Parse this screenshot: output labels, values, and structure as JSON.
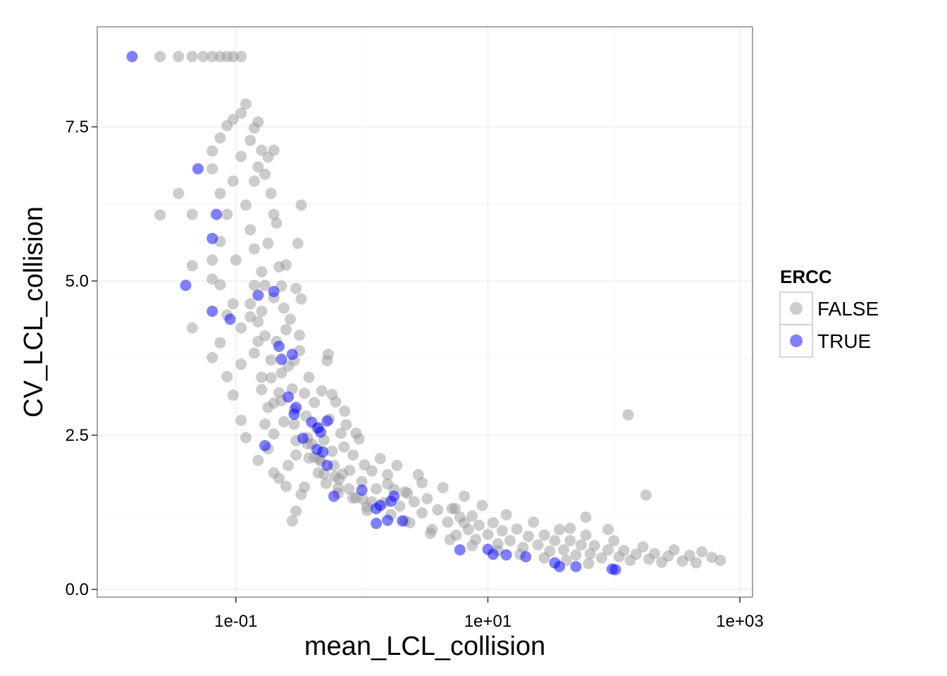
{
  "chart_data": {
    "type": "scatter",
    "title": "",
    "xlabel": "mean_LCL_collision",
    "ylabel": "CV_LCL_collision",
    "x_scale": "log10",
    "xlim": [
      0.01,
      1000
    ],
    "ylim": [
      0.0,
      8.7
    ],
    "x_ticks": [
      0.1,
      10,
      1000
    ],
    "x_tick_labels": [
      "1e-01",
      "1e+01",
      "1e+03"
    ],
    "y_ticks": [
      0.0,
      2.5,
      5.0,
      7.5
    ],
    "y_tick_labels": [
      "0.0",
      "2.5",
      "5.0",
      "7.5"
    ],
    "grid": true,
    "legend": {
      "title": "ERCC",
      "position": "right",
      "entries": [
        {
          "label": "FALSE",
          "color": "#999999"
        },
        {
          "label": "TRUE",
          "color": "#0000ff"
        }
      ]
    },
    "series": [
      {
        "name": "FALSE",
        "color": "#999999",
        "opacity": 0.5,
        "points": [
          [
            0.025,
            8.64
          ],
          [
            0.035,
            8.64
          ],
          [
            0.045,
            8.64
          ],
          [
            0.055,
            8.64
          ],
          [
            0.065,
            8.64
          ],
          [
            0.075,
            8.64
          ],
          [
            0.085,
            8.64
          ],
          [
            0.095,
            8.64
          ],
          [
            0.11,
            8.64
          ],
          [
            0.025,
            6.07
          ],
          [
            0.035,
            6.42
          ],
          [
            0.045,
            6.08
          ],
          [
            0.045,
            4.24
          ],
          [
            0.045,
            5.25
          ],
          [
            0.065,
            7.11
          ],
          [
            0.065,
            6.82
          ],
          [
            0.065,
            3.76
          ],
          [
            0.065,
            5.34
          ],
          [
            0.065,
            5.03
          ],
          [
            0.075,
            7.32
          ],
          [
            0.075,
            6.42
          ],
          [
            0.075,
            4.0
          ],
          [
            0.075,
            4.94
          ],
          [
            0.075,
            5.64
          ],
          [
            0.085,
            7.52
          ],
          [
            0.085,
            6.08
          ],
          [
            0.085,
            3.45
          ],
          [
            0.085,
            4.45
          ],
          [
            0.095,
            7.62
          ],
          [
            0.095,
            6.62
          ],
          [
            0.095,
            3.15
          ],
          [
            0.095,
            4.63
          ],
          [
            0.1,
            5.34
          ],
          [
            0.11,
            7.72
          ],
          [
            0.11,
            7.02
          ],
          [
            0.11,
            2.74
          ],
          [
            0.11,
            3.65
          ],
          [
            0.11,
            4.24
          ],
          [
            0.12,
            7.87
          ],
          [
            0.12,
            6.23
          ],
          [
            0.12,
            2.46
          ],
          [
            0.13,
            7.28
          ],
          [
            0.13,
            5.83
          ],
          [
            0.13,
            4.63
          ],
          [
            0.14,
            7.48
          ],
          [
            0.14,
            6.62
          ],
          [
            0.14,
            5.52
          ],
          [
            0.15,
            7.58
          ],
          [
            0.15,
            6.85
          ],
          [
            0.15,
            4.34
          ],
          [
            0.16,
            7.12
          ],
          [
            0.16,
            5.15
          ],
          [
            0.16,
            3.24
          ],
          [
            0.17,
            6.73
          ],
          [
            0.17,
            4.93
          ],
          [
            0.17,
            2.68
          ],
          [
            0.18,
            7.01
          ],
          [
            0.18,
            5.61
          ],
          [
            0.19,
            6.42
          ],
          [
            0.2,
            6.08
          ],
          [
            0.2,
            4.73
          ],
          [
            0.2,
            1.89
          ],
          [
            0.21,
            5.94
          ],
          [
            0.21,
            4.02
          ],
          [
            0.22,
            5.23
          ],
          [
            0.22,
            3.19
          ],
          [
            0.23,
            4.92
          ],
          [
            0.24,
            4.56
          ],
          [
            0.25,
            4.21
          ],
          [
            0.25,
            5.26
          ],
          [
            0.26,
            3.62
          ],
          [
            0.27,
            4.38
          ],
          [
            0.28,
            3.25
          ],
          [
            0.29,
            3.71
          ],
          [
            0.3,
            4.88
          ],
          [
            0.3,
            2.18
          ],
          [
            0.32,
            3.87
          ],
          [
            0.33,
            1.54
          ],
          [
            0.35,
            3.18
          ],
          [
            0.36,
            2.81
          ],
          [
            0.38,
            3.44
          ],
          [
            0.4,
            2.36
          ],
          [
            0.42,
            3.03
          ],
          [
            0.44,
            2.61
          ],
          [
            0.46,
            2.12
          ],
          [
            0.48,
            3.22
          ],
          [
            0.5,
            2.42
          ],
          [
            0.52,
            1.72
          ],
          [
            0.55,
            2.76
          ],
          [
            0.58,
            2.24
          ],
          [
            0.6,
            2.01
          ],
          [
            0.62,
            3.04
          ],
          [
            0.65,
            1.56
          ],
          [
            0.68,
            2.53
          ],
          [
            0.7,
            1.87
          ],
          [
            0.72,
            2.31
          ],
          [
            0.75,
            2.67
          ],
          [
            0.8,
            1.93
          ],
          [
            0.85,
            2.18
          ],
          [
            0.9,
            1.49
          ],
          [
            0.95,
            2.44
          ],
          [
            1.0,
            1.75
          ],
          [
            1.05,
            2.02
          ],
          [
            1.1,
            1.28
          ],
          [
            1.2,
            1.92
          ],
          [
            1.3,
            1.63
          ],
          [
            1.4,
            2.12
          ],
          [
            1.5,
            1.41
          ],
          [
            1.6,
            1.86
          ],
          [
            1.7,
            1.21
          ],
          [
            1.8,
            1.62
          ],
          [
            1.9,
            2.01
          ],
          [
            2.0,
            1.35
          ],
          [
            2.2,
            1.58
          ],
          [
            2.4,
            1.08
          ],
          [
            2.6,
            1.42
          ],
          [
            2.8,
            1.86
          ],
          [
            3.0,
            1.24
          ],
          [
            3.3,
            1.47
          ],
          [
            3.6,
            0.97
          ],
          [
            4.0,
            1.29
          ],
          [
            4.4,
            1.65
          ],
          [
            4.8,
            1.09
          ],
          [
            5.2,
            1.31
          ],
          [
            5.6,
            0.88
          ],
          [
            6.0,
            1.17
          ],
          [
            6.5,
            1.51
          ],
          [
            7.0,
            0.97
          ],
          [
            7.5,
            1.19
          ],
          [
            8.0,
            0.81
          ],
          [
            8.5,
            1.04
          ],
          [
            9.0,
            1.36
          ],
          [
            10.0,
            0.89
          ],
          [
            11.0,
            1.08
          ],
          [
            12.0,
            0.74
          ],
          [
            13.0,
            0.95
          ],
          [
            14.0,
            1.21
          ],
          [
            15.0,
            0.79
          ],
          [
            17.0,
            0.98
          ],
          [
            19.0,
            0.68
          ],
          [
            21.0,
            0.86
          ],
          [
            23.0,
            1.09
          ],
          [
            25.0,
            0.72
          ],
          [
            28.0,
            0.88
          ],
          [
            31.0,
            0.62
          ],
          [
            34.0,
            0.79
          ],
          [
            37.0,
            0.97
          ],
          [
            40.0,
            0.64
          ],
          [
            45.0,
            0.79
          ],
          [
            50.0,
            0.56
          ],
          [
            55.0,
            0.72
          ],
          [
            60.0,
            0.88
          ],
          [
            65.0,
            0.58
          ],
          [
            70.0,
            0.71
          ],
          [
            80.0,
            0.51
          ],
          [
            90.0,
            0.64
          ],
          [
            100.0,
            0.79
          ],
          [
            110.0,
            0.53
          ],
          [
            120.0,
            0.63
          ],
          [
            135.0,
            0.47
          ],
          [
            150.0,
            0.57
          ],
          [
            170.0,
            0.69
          ],
          [
            190.0,
            0.49
          ],
          [
            210.0,
            0.58
          ],
          [
            240.0,
            0.44
          ],
          [
            270.0,
            0.54
          ],
          [
            300.0,
            0.64
          ],
          [
            350.0,
            0.46
          ],
          [
            400.0,
            0.55
          ],
          [
            450.0,
            0.43
          ],
          [
            500.0,
            0.61
          ],
          [
            600.0,
            0.52
          ],
          [
            700.0,
            0.47
          ],
          [
            0.2,
            7.12
          ],
          [
            0.33,
            6.23
          ],
          [
            0.31,
            5.61
          ],
          [
            0.33,
            4.71
          ],
          [
            0.32,
            4.12
          ],
          [
            0.54,
            3.81
          ],
          [
            0.53,
            3.71
          ],
          [
            0.9,
            2.53
          ],
          [
            0.73,
            2.89
          ],
          [
            0.58,
            3.16
          ],
          [
            1.6,
            1.71
          ],
          [
            2.3,
            1.56
          ],
          [
            3.0,
            1.73
          ],
          [
            5.5,
            1.31
          ],
          [
            6.5,
            1.08
          ],
          [
            130.0,
            2.83
          ],
          [
            180.0,
            1.53
          ],
          [
            60.0,
            1.17
          ],
          [
            45.0,
            0.99
          ],
          [
            90.0,
            0.97
          ],
          [
            0.45,
            1.89
          ],
          [
            0.28,
            1.11
          ],
          [
            0.3,
            1.27
          ],
          [
            0.22,
            1.8
          ],
          [
            0.15,
            2.09
          ],
          [
            0.18,
            2.28
          ],
          [
            0.2,
            2.52
          ],
          [
            0.25,
            1.67
          ],
          [
            0.35,
            1.66
          ],
          [
            0.26,
            2.01
          ],
          [
            0.18,
            2.95
          ],
          [
            0.17,
            4.11
          ],
          [
            0.19,
            3.72
          ],
          [
            0.14,
            4.93
          ],
          [
            0.16,
            4.51
          ],
          [
            0.23,
            3.51
          ],
          [
            0.29,
            2.91
          ],
          [
            0.37,
            2.46
          ],
          [
            0.42,
            2.14
          ],
          [
            0.66,
            1.79
          ],
          [
            1.2,
            1.42
          ],
          [
            2.2,
            1.11
          ],
          [
            3.5,
            0.91
          ],
          [
            5.0,
            0.81
          ],
          [
            7.5,
            0.71
          ],
          [
            12.0,
            0.63
          ],
          [
            18.0,
            0.57
          ],
          [
            28.0,
            0.51
          ],
          [
            42.0,
            0.47
          ],
          [
            63.0,
            0.42
          ],
          [
            0.14,
            3.83
          ],
          [
            0.16,
            3.44
          ],
          [
            0.2,
            3.02
          ],
          [
            0.24,
            2.72
          ],
          [
            0.3,
            2.41
          ],
          [
            0.38,
            2.13
          ],
          [
            0.5,
            1.87
          ],
          [
            0.65,
            1.65
          ],
          [
            0.85,
            1.48
          ],
          [
            1.1,
            1.34
          ],
          [
            0.13,
            4.42
          ],
          [
            0.15,
            4.02
          ],
          [
            0.19,
            3.43
          ],
          [
            0.23,
            3.06
          ],
          [
            0.29,
            2.68
          ],
          [
            0.37,
            2.36
          ],
          [
            0.47,
            2.08
          ],
          [
            0.61,
            1.83
          ],
          [
            0.79,
            1.63
          ],
          [
            1.02,
            1.46
          ]
        ]
      },
      {
        "name": "TRUE",
        "color": "#0000ff",
        "opacity": 0.5,
        "points": [
          [
            0.015,
            8.64
          ],
          [
            0.05,
            6.82
          ],
          [
            0.07,
            6.08
          ],
          [
            0.065,
            5.69
          ],
          [
            0.04,
            4.93
          ],
          [
            0.065,
            4.51
          ],
          [
            0.09,
            4.38
          ],
          [
            0.15,
            4.77
          ],
          [
            0.2,
            4.83
          ],
          [
            0.22,
            3.94
          ],
          [
            0.23,
            3.73
          ],
          [
            0.28,
            3.81
          ],
          [
            0.26,
            3.12
          ],
          [
            0.3,
            2.95
          ],
          [
            0.29,
            2.84
          ],
          [
            0.4,
            2.71
          ],
          [
            0.45,
            2.62
          ],
          [
            0.53,
            2.73
          ],
          [
            0.47,
            2.55
          ],
          [
            0.34,
            2.45
          ],
          [
            0.44,
            2.27
          ],
          [
            0.49,
            2.23
          ],
          [
            0.17,
            2.33
          ],
          [
            0.53,
            2.01
          ],
          [
            0.6,
            1.51
          ],
          [
            1.0,
            1.61
          ],
          [
            1.3,
            1.31
          ],
          [
            1.4,
            1.36
          ],
          [
            1.8,
            1.51
          ],
          [
            1.7,
            1.43
          ],
          [
            1.3,
            1.07
          ],
          [
            1.6,
            1.12
          ],
          [
            2.1,
            1.11
          ],
          [
            6.0,
            0.64
          ],
          [
            10.0,
            0.65
          ],
          [
            11.0,
            0.57
          ],
          [
            14.0,
            0.56
          ],
          [
            20.0,
            0.53
          ],
          [
            34.0,
            0.43
          ],
          [
            37.0,
            0.37
          ],
          [
            50.0,
            0.37
          ],
          [
            97.0,
            0.33
          ],
          [
            103.0,
            0.32
          ]
        ]
      }
    ]
  }
}
